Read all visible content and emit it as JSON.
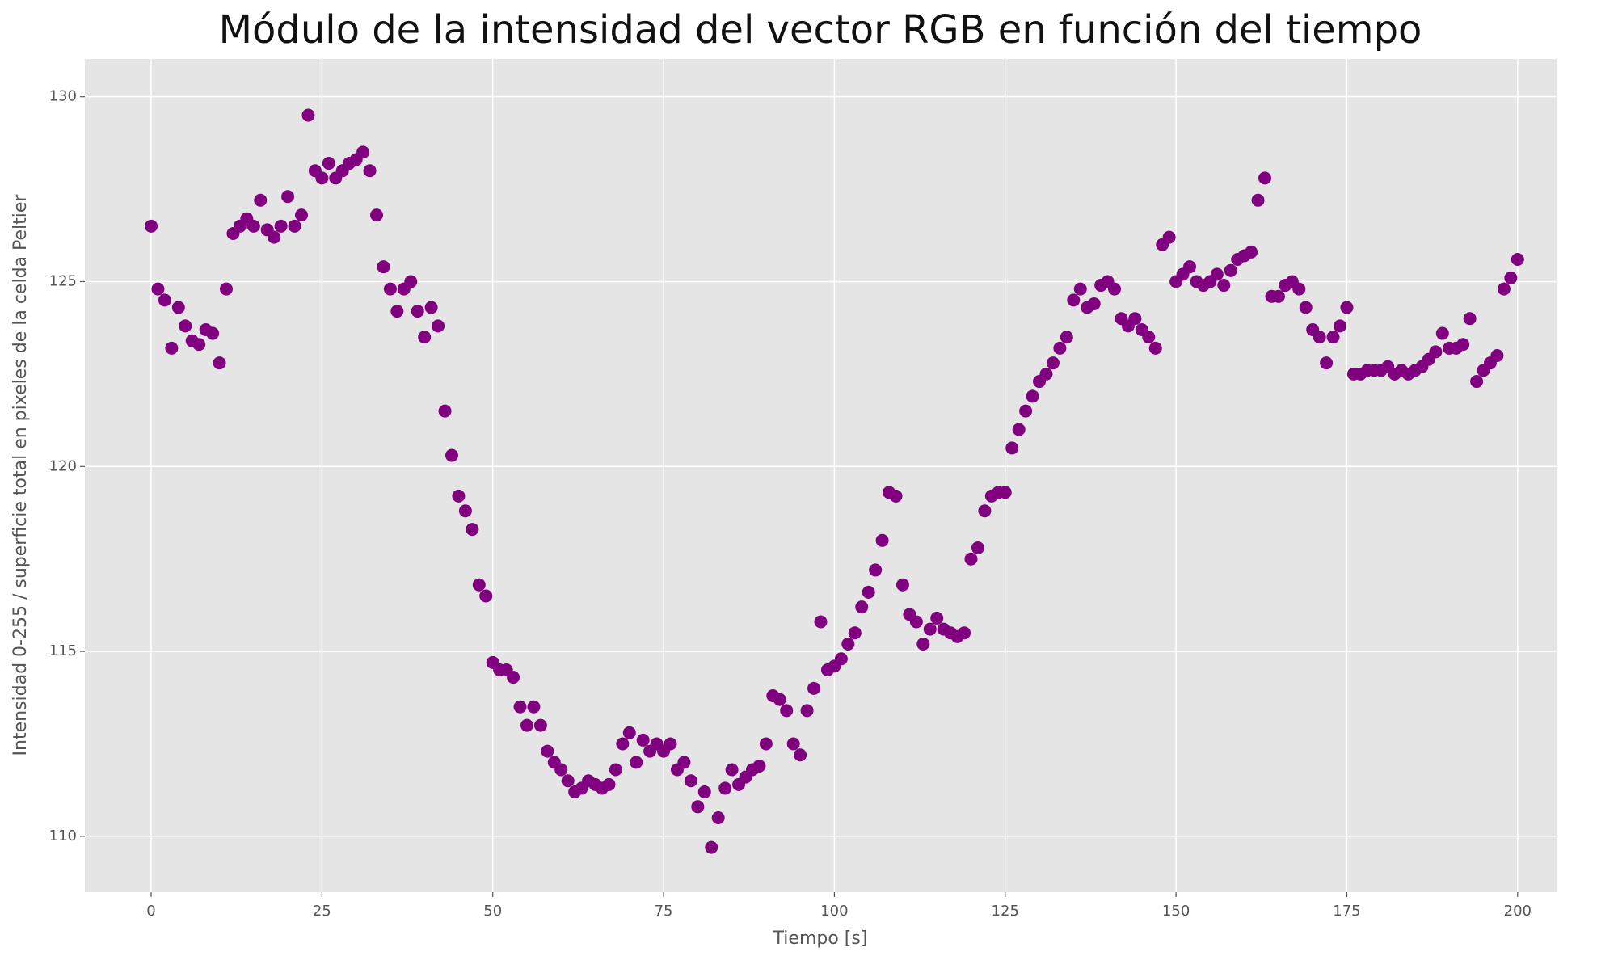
{
  "chart_data": {
    "type": "scatter",
    "title": "Módulo de la intensidad del vector RGB en función del tiempo",
    "x_label": "Tiempo [s]",
    "y_label": "Intensidad 0-255 / superficie total en pixeles de la celda Peltier",
    "color": "#800080",
    "grid": true,
    "xlim": [
      -9.7,
      205.7
    ],
    "ylim": [
      108.49,
      131.02
    ],
    "xticks": [
      0,
      25,
      50,
      75,
      100,
      125,
      150,
      175,
      200
    ],
    "yticks": [
      110,
      115,
      120,
      125,
      130
    ],
    "x": [
      0,
      1,
      2,
      3,
      4,
      5,
      6,
      7,
      8,
      9,
      10,
      11,
      12,
      13,
      14,
      15,
      16,
      17,
      18,
      19,
      20,
      21,
      22,
      23,
      24,
      25,
      26,
      27,
      28,
      29,
      30,
      31,
      32,
      33,
      34,
      35,
      36,
      37,
      38,
      39,
      40,
      41,
      42,
      43,
      44,
      45,
      46,
      47,
      48,
      49,
      50,
      51,
      52,
      53,
      54,
      55,
      56,
      57,
      58,
      59,
      60,
      61,
      62,
      63,
      64,
      65,
      66,
      67,
      68,
      69,
      70,
      71,
      72,
      73,
      74,
      75,
      76,
      77,
      78,
      79,
      80,
      81,
      82,
      83,
      84,
      85,
      86,
      87,
      88,
      89,
      90,
      91,
      92,
      93,
      94,
      95,
      96,
      97,
      98,
      99,
      100,
      101,
      102,
      103,
      104,
      105,
      106,
      107,
      108,
      109,
      110,
      111,
      112,
      113,
      114,
      115,
      116,
      117,
      118,
      119,
      120,
      121,
      122,
      123,
      124,
      125,
      126,
      127,
      128,
      129,
      130,
      131,
      132,
      133,
      134,
      135,
      136,
      137,
      138,
      139,
      140,
      141,
      142,
      143,
      144,
      145,
      146,
      147,
      148,
      149,
      150,
      151,
      152,
      153,
      154,
      155,
      156,
      157,
      158,
      159,
      160,
      161,
      162,
      163,
      164,
      165,
      166,
      167,
      168,
      169,
      170,
      171,
      172,
      173,
      174,
      175,
      176,
      177,
      178,
      179,
      180,
      181,
      182,
      183,
      184,
      185,
      186,
      187,
      188,
      189,
      190,
      191,
      192,
      193,
      194,
      195,
      196,
      197,
      198,
      199,
      200
    ],
    "values": [
      126.5,
      124.8,
      124.5,
      123.2,
      124.3,
      123.8,
      123.4,
      123.3,
      123.7,
      123.6,
      122.8,
      124.8,
      126.3,
      126.5,
      126.7,
      126.5,
      127.2,
      126.4,
      126.2,
      126.5,
      127.3,
      126.5,
      126.8,
      129.5,
      128,
      127.8,
      128.2,
      127.8,
      128,
      128.2,
      128.3,
      128.5,
      128,
      126.8,
      125.4,
      124.8,
      124.2,
      124.8,
      125,
      124.2,
      123.5,
      124.3,
      123.8,
      121.5,
      120.3,
      119.2,
      118.8,
      118.3,
      116.8,
      116.5,
      114.7,
      114.5,
      114.5,
      114.3,
      113.5,
      113,
      113.5,
      113,
      112.3,
      112,
      111.8,
      111.5,
      111.2,
      111.3,
      111.5,
      111.4,
      111.3,
      111.4,
      111.8,
      112.5,
      112.8,
      112,
      112.6,
      112.3,
      112.5,
      112.3,
      112.5,
      111.8,
      112,
      111.5,
      110.8,
      111.2,
      109.7,
      110.5,
      111.3,
      111.8,
      111.4,
      111.6,
      111.8,
      111.9,
      112.5,
      113.8,
      113.7,
      113.4,
      112.5,
      112.2,
      113.4,
      114,
      115.8,
      114.5,
      114.6,
      114.8,
      115.2,
      115.5,
      116.2,
      116.6,
      117.2,
      118,
      119.3,
      119.2,
      116.8,
      116,
      115.8,
      115.2,
      115.6,
      115.9,
      115.6,
      115.5,
      115.4,
      115.5,
      117.5,
      117.8,
      118.8,
      119.2,
      119.3,
      119.3,
      120.5,
      121,
      121.5,
      121.9,
      122.3,
      122.5,
      122.8,
      123.2,
      123.5,
      124.5,
      124.8,
      124.3,
      124.4,
      124.9,
      125,
      124.8,
      124,
      123.8,
      124,
      123.7,
      123.5,
      123.2,
      126,
      126.2,
      125,
      125.2,
      125.4,
      125,
      124.9,
      125,
      125.2,
      124.9,
      125.3,
      125.6,
      125.7,
      125.8,
      127.2,
      127.8,
      124.6,
      124.6,
      124.9,
      125,
      124.8,
      124.3,
      123.7,
      123.5,
      122.8,
      123.5,
      123.8,
      124.3,
      122.5,
      122.5,
      122.6,
      122.6,
      122.6,
      122.7,
      122.5,
      122.6,
      122.5,
      122.6,
      122.7,
      122.9,
      123.1,
      123.6,
      123.2,
      123.2,
      123.3,
      124,
      122.3,
      122.6,
      122.8,
      123,
      124.8,
      125.1,
      125.6
    ]
  }
}
